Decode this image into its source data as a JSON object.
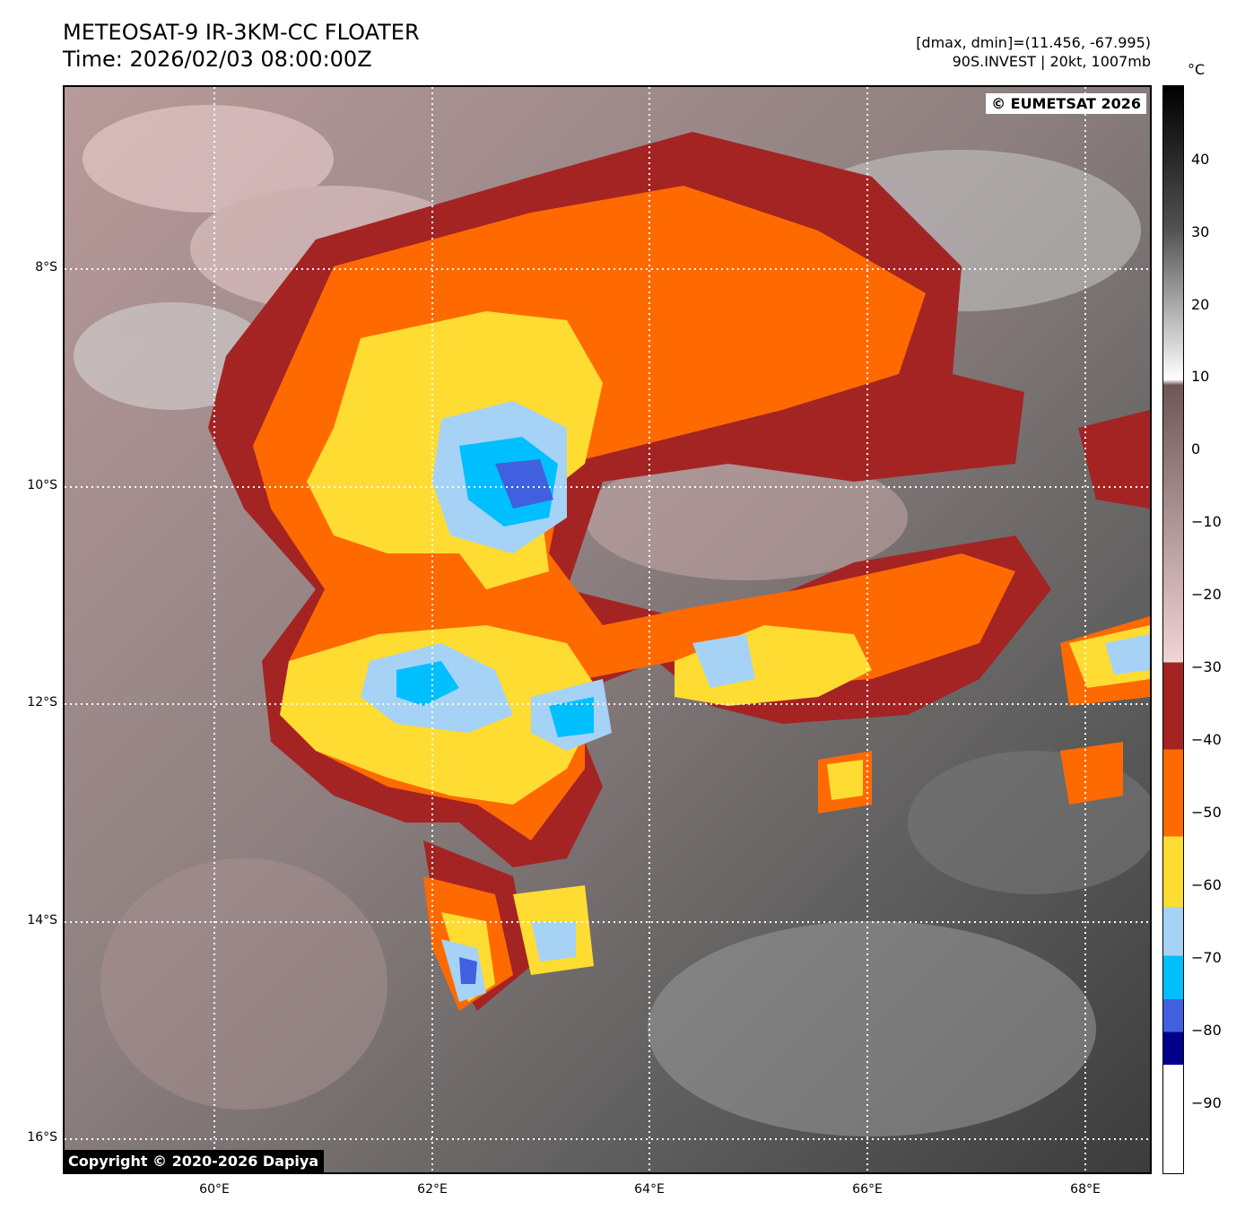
{
  "header": {
    "title": "METEOSAT-9 IR-3KM-CC FLOATER",
    "time": "Time: 2026/02/03 08:00:00Z",
    "range": "[dmax, dmin]=(11.456, -67.995)",
    "storm": "90S.INVEST | 20kt, 1007mb"
  },
  "map": {
    "copyright_top": "© EUMETSAT 2026",
    "copyright_bottom": "Copyright © 2020-2026 Dapiya",
    "lat_labels": [
      "8°S",
      "10°S",
      "12°S",
      "14°S",
      "16°S"
    ],
    "lon_labels": [
      "60°E",
      "62°E",
      "64°E",
      "66°E",
      "68°E"
    ]
  },
  "colorbar": {
    "unit": "°C",
    "ticks": [
      "40",
      "30",
      "20",
      "10",
      "0",
      "−10",
      "−20",
      "−30",
      "−40",
      "−50",
      "−60",
      "−70",
      "−80",
      "−90"
    ],
    "colors": {
      "black": "#000000",
      "white": "#ffffff",
      "brown": "#6e5656",
      "pink": "#f0d5d5",
      "darkred": "#a42424",
      "orange": "#ff6a00",
      "yellow": "#ffdc32",
      "lightblue": "#a6d2f5",
      "cyan": "#00bfff",
      "blue": "#4060e0",
      "navy": "#00008c"
    }
  }
}
